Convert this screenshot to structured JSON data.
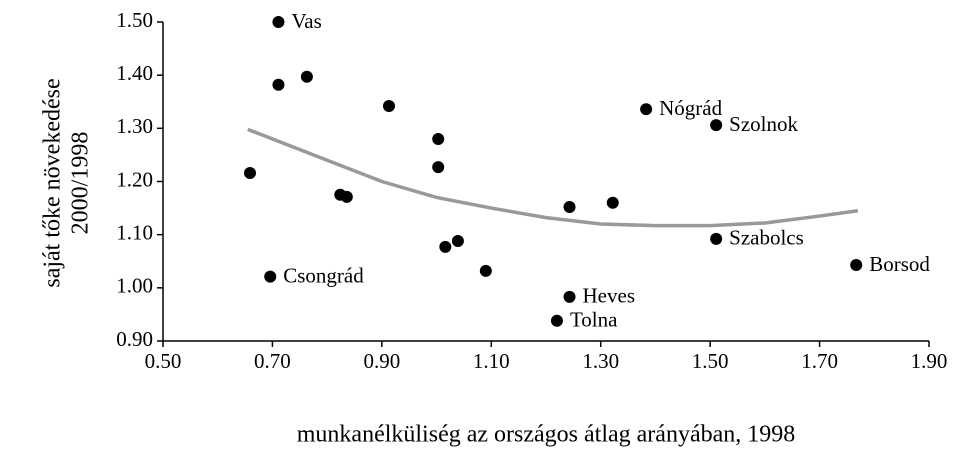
{
  "chart_data": {
    "type": "scatter",
    "x_label": "munkanélküliség az országos átlag arányában, 1998",
    "y_label": [
      "saját tőke növekedése",
      "2000/1998"
    ],
    "series": [
      {
        "type": "scatter",
        "color": "#000000",
        "x": [
          0.659,
          0.711,
          0.711,
          0.763,
          0.913,
          1.003,
          1.003,
          0.824,
          0.836,
          1.016,
          1.039,
          1.09,
          1.243,
          1.322,
          0.696,
          1.243,
          1.22,
          1.383,
          1.511,
          1.511,
          1.767
        ],
        "values": [
          1.216,
          1.5,
          1.382,
          1.397,
          1.342,
          1.227,
          1.28,
          1.175,
          1.171,
          1.077,
          1.088,
          1.032,
          1.152,
          1.16,
          1.021,
          0.983,
          0.938,
          1.336,
          1.306,
          1.092,
          1.043
        ],
        "labels": [
          null,
          "Vas",
          null,
          null,
          null,
          null,
          null,
          null,
          null,
          null,
          null,
          null,
          null,
          null,
          "Csongrád",
          "Heves",
          "Tolna",
          "Nógrád",
          "Szolnok",
          "Szabolcs",
          "Borsod"
        ]
      },
      {
        "type": "line",
        "color": "#999999",
        "x": [
          0.655,
          0.8,
          0.9,
          1.0,
          1.1,
          1.2,
          1.3,
          1.4,
          1.5,
          1.6,
          1.7,
          1.77
        ],
        "values": [
          1.298,
          1.24,
          1.2,
          1.17,
          1.15,
          1.132,
          1.12,
          1.117,
          1.117,
          1.122,
          1.135,
          1.145
        ]
      }
    ],
    "xlim": [
      0.5,
      1.9
    ],
    "xticks": [
      {
        "value": 0.5,
        "label": "0.50"
      },
      {
        "value": 0.7,
        "label": "0.70"
      },
      {
        "value": 0.9,
        "label": "0.90"
      },
      {
        "value": 1.1,
        "label": "1.10"
      },
      {
        "value": 1.3,
        "label": "1.30"
      },
      {
        "value": 1.5,
        "label": "1.50"
      },
      {
        "value": 1.7,
        "label": "1.70"
      },
      {
        "value": 1.9,
        "label": "1.90"
      }
    ],
    "ylim": [
      0.9,
      1.5
    ],
    "yticks": [
      {
        "value": 0.9,
        "label": "0.90"
      },
      {
        "value": 1.0,
        "label": "1.00"
      },
      {
        "value": 1.1,
        "label": "1.10"
      },
      {
        "value": 1.2,
        "label": "1.20"
      },
      {
        "value": 1.3,
        "label": "1.30"
      },
      {
        "value": 1.4,
        "label": "1.40"
      },
      {
        "value": 1.5,
        "label": "1.50"
      }
    ]
  }
}
